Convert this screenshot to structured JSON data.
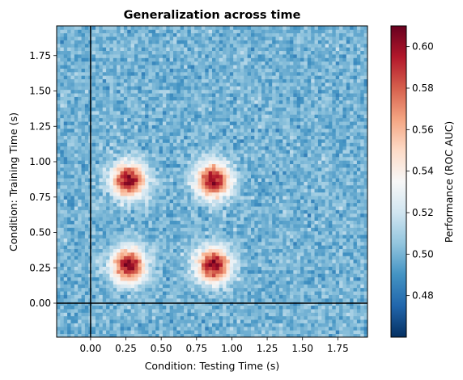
{
  "chart_data": {
    "type": "heatmap",
    "title": "Generalization across time",
    "xlabel": "Condition: Testing Time (s)",
    "ylabel": "Condition: Training Time (s)",
    "xlim": [
      -0.24,
      1.96
    ],
    "ylim": [
      -0.24,
      1.96
    ],
    "x_ticks": [
      "0.00",
      "0.25",
      "0.50",
      "0.75",
      "1.00",
      "1.25",
      "1.50",
      "1.75"
    ],
    "y_ticks": [
      "0.00",
      "0.25",
      "0.50",
      "0.75",
      "1.00",
      "1.25",
      "1.50",
      "1.75"
    ],
    "reference_lines": {
      "x": 0.0,
      "y": 0.0
    },
    "colormap": "RdBu_r",
    "color_range": [
      0.46,
      0.61
    ],
    "colorbar": {
      "label": "Performance (ROC AUC)",
      "ticks": [
        "0.48",
        "0.50",
        "0.52",
        "0.54",
        "0.56",
        "0.58",
        "0.60"
      ]
    },
    "background_level": 0.5,
    "peaks": [
      {
        "train_time": 0.27,
        "test_time": 0.27,
        "value": 0.6
      },
      {
        "train_time": 0.27,
        "test_time": 0.87,
        "value": 0.6
      },
      {
        "train_time": 0.87,
        "test_time": 0.27,
        "value": 0.6
      },
      {
        "train_time": 0.87,
        "test_time": 0.87,
        "value": 0.6
      }
    ],
    "grid": false
  }
}
